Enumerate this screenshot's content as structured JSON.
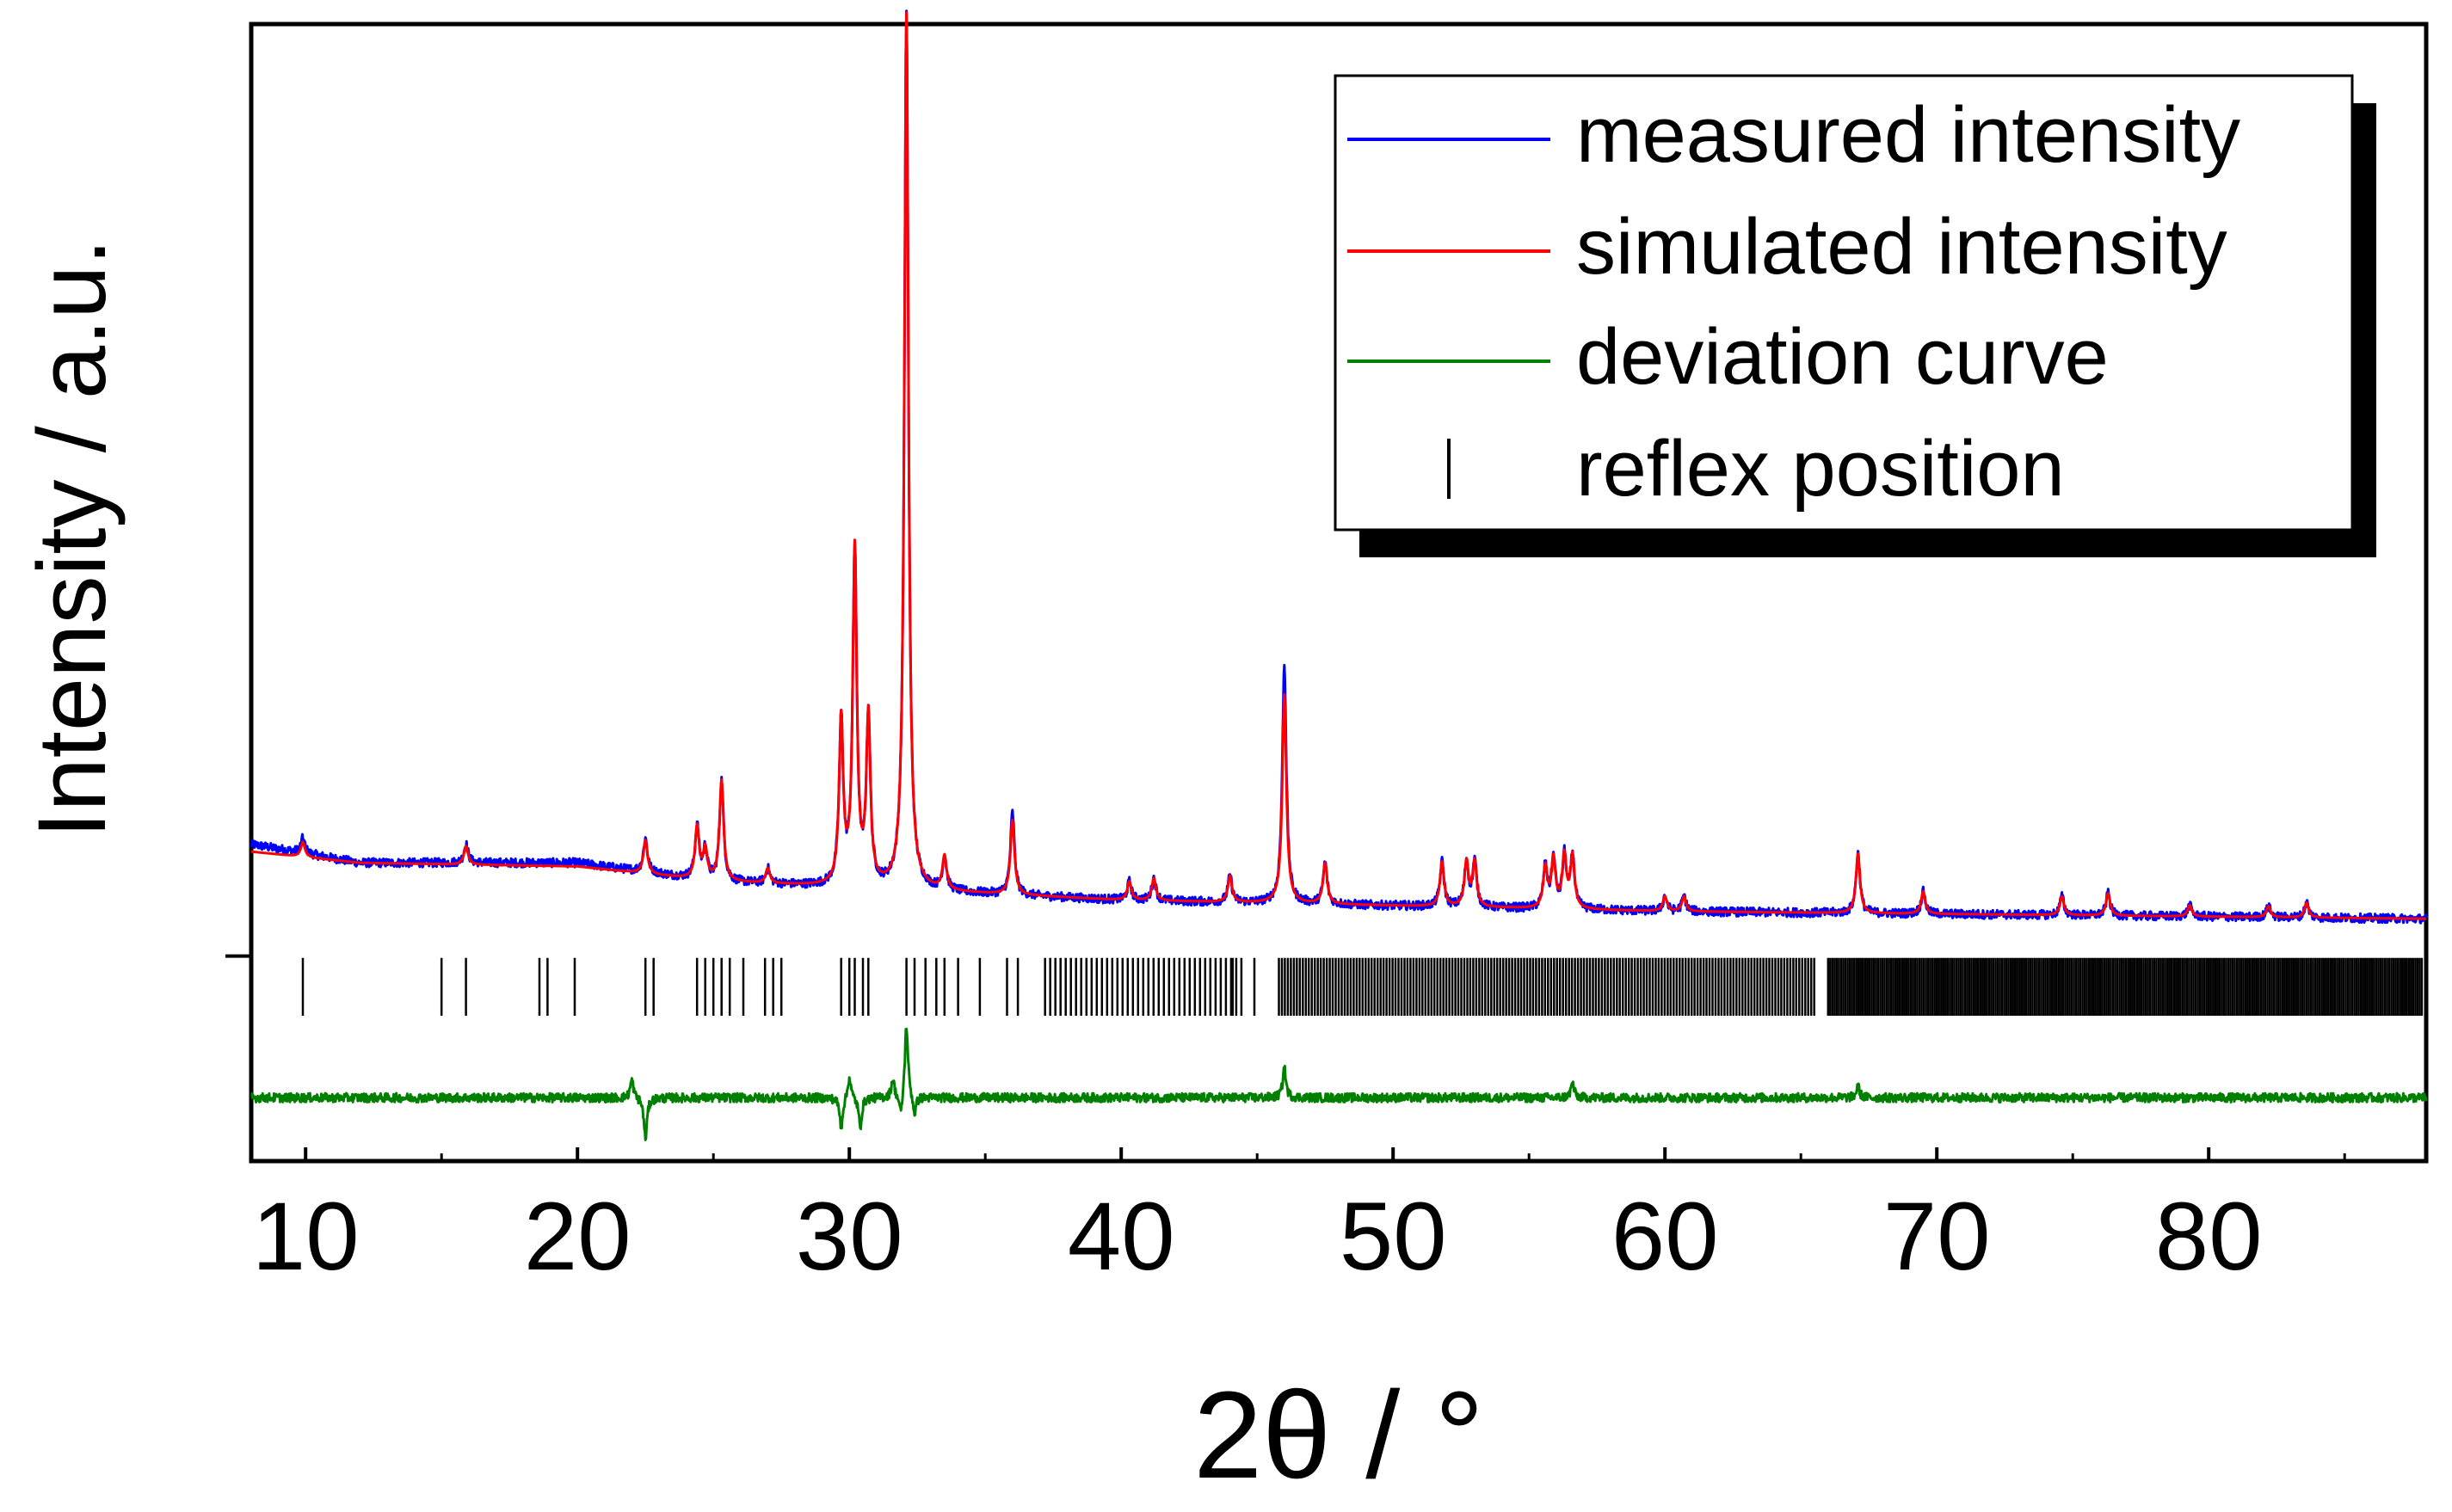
{
  "chart_data": {
    "type": "line",
    "title": "",
    "xlabel": "2θ / °",
    "ylabel": "Intensity / a.u.",
    "xlim": [
      8,
      88
    ],
    "ylim": [
      -0.55,
      2.5
    ],
    "x_ticks": [
      10,
      20,
      30,
      40,
      50,
      60,
      70,
      80
    ],
    "x_tick_labels": [
      "10",
      "20",
      "30",
      "40",
      "50",
      "60",
      "70",
      "80"
    ],
    "y_tick_value": 0,
    "grid": false,
    "legend_position": "top-right",
    "legend": [
      {
        "label": "measured intensity",
        "color": "#0000ff",
        "marker": "line"
      },
      {
        "label": "simulated intensity",
        "color": "#ff0000",
        "marker": "line"
      },
      {
        "label": "deviation curve",
        "color": "#008000",
        "marker": "line"
      },
      {
        "label": "reflex position",
        "color": "#000000",
        "marker": "tick"
      }
    ],
    "series": [
      {
        "name": "measured intensity",
        "color": "#0000ff",
        "background": [
          [
            8,
            0.3
          ],
          [
            12,
            0.25
          ],
          [
            20,
            0.25
          ],
          [
            25,
            0.2
          ],
          [
            40,
            0.15
          ],
          [
            60,
            0.12
          ],
          [
            88,
            0.1
          ]
        ],
        "noise": 0.012,
        "peaks": [
          {
            "x": 9.9,
            "h": 0.04
          },
          {
            "x": 15.9,
            "h": 0.05
          },
          {
            "x": 22.5,
            "h": 0.09
          },
          {
            "x": 24.4,
            "h": 0.14
          },
          {
            "x": 24.7,
            "h": 0.08
          },
          {
            "x": 25.3,
            "h": 0.27
          },
          {
            "x": 27.0,
            "h": 0.04
          },
          {
            "x": 29.7,
            "h": 0.44
          },
          {
            "x": 30.2,
            "h": 0.9
          },
          {
            "x": 30.7,
            "h": 0.45
          },
          {
            "x": 32.1,
            "h": 2.35
          },
          {
            "x": 33.5,
            "h": 0.09
          },
          {
            "x": 36.0,
            "h": 0.22
          },
          {
            "x": 40.3,
            "h": 0.05
          },
          {
            "x": 41.2,
            "h": 0.06
          },
          {
            "x": 44.0,
            "h": 0.07
          },
          {
            "x": 46.0,
            "h": 0.64
          },
          {
            "x": 47.5,
            "h": 0.11
          },
          {
            "x": 51.8,
            "h": 0.12
          },
          {
            "x": 52.7,
            "h": 0.12
          },
          {
            "x": 53.0,
            "h": 0.12
          },
          {
            "x": 55.6,
            "h": 0.11
          },
          {
            "x": 55.9,
            "h": 0.13
          },
          {
            "x": 56.3,
            "h": 0.14
          },
          {
            "x": 56.6,
            "h": 0.14
          },
          {
            "x": 60.0,
            "h": 0.04
          },
          {
            "x": 60.7,
            "h": 0.04
          },
          {
            "x": 67.1,
            "h": 0.16
          },
          {
            "x": 69.5,
            "h": 0.06
          },
          {
            "x": 74.6,
            "h": 0.05
          },
          {
            "x": 76.3,
            "h": 0.06
          },
          {
            "x": 79.3,
            "h": 0.03
          },
          {
            "x": 82.2,
            "h": 0.03
          },
          {
            "x": 83.6,
            "h": 0.04
          }
        ]
      },
      {
        "name": "simulated intensity",
        "color": "#ff0000",
        "background": [
          [
            8,
            0.28
          ],
          [
            12,
            0.25
          ],
          [
            20,
            0.24
          ],
          [
            25,
            0.2
          ],
          [
            40,
            0.15
          ],
          [
            60,
            0.12
          ],
          [
            88,
            0.1
          ]
        ],
        "noise": 0.0,
        "peaks": [
          {
            "x": 9.9,
            "h": 0.04
          },
          {
            "x": 15.9,
            "h": 0.05
          },
          {
            "x": 22.5,
            "h": 0.09
          },
          {
            "x": 24.4,
            "h": 0.14
          },
          {
            "x": 24.7,
            "h": 0.08
          },
          {
            "x": 25.3,
            "h": 0.27
          },
          {
            "x": 27.0,
            "h": 0.04
          },
          {
            "x": 29.7,
            "h": 0.44
          },
          {
            "x": 30.2,
            "h": 0.9
          },
          {
            "x": 30.7,
            "h": 0.45
          },
          {
            "x": 32.1,
            "h": 2.35
          },
          {
            "x": 33.5,
            "h": 0.09
          },
          {
            "x": 36.0,
            "h": 0.2
          },
          {
            "x": 40.3,
            "h": 0.05
          },
          {
            "x": 41.2,
            "h": 0.06
          },
          {
            "x": 44.0,
            "h": 0.07
          },
          {
            "x": 46.0,
            "h": 0.56
          },
          {
            "x": 47.5,
            "h": 0.11
          },
          {
            "x": 51.8,
            "h": 0.12
          },
          {
            "x": 52.7,
            "h": 0.12
          },
          {
            "x": 53.0,
            "h": 0.12
          },
          {
            "x": 55.6,
            "h": 0.11
          },
          {
            "x": 55.9,
            "h": 0.13
          },
          {
            "x": 56.3,
            "h": 0.14
          },
          {
            "x": 56.6,
            "h": 0.14
          },
          {
            "x": 60.0,
            "h": 0.04
          },
          {
            "x": 60.7,
            "h": 0.04
          },
          {
            "x": 67.1,
            "h": 0.16
          },
          {
            "x": 69.5,
            "h": 0.06
          },
          {
            "x": 74.6,
            "h": 0.05
          },
          {
            "x": 76.3,
            "h": 0.06
          },
          {
            "x": 79.3,
            "h": 0.03
          },
          {
            "x": 82.2,
            "h": 0.03
          },
          {
            "x": 83.6,
            "h": 0.04
          }
        ]
      },
      {
        "name": "deviation curve",
        "color": "#008000",
        "baseline": -0.38,
        "noise": 0.012,
        "features": [
          {
            "x": 22.0,
            "h": 0.05
          },
          {
            "x": 22.5,
            "h": -0.11
          },
          {
            "x": 29.7,
            "h": -0.08
          },
          {
            "x": 30.0,
            "h": 0.06
          },
          {
            "x": 30.4,
            "h": -0.08
          },
          {
            "x": 31.6,
            "h": 0.05
          },
          {
            "x": 31.9,
            "h": -0.06
          },
          {
            "x": 32.1,
            "h": 0.2
          },
          {
            "x": 32.4,
            "h": -0.05
          },
          {
            "x": 46.0,
            "h": 0.08
          },
          {
            "x": 56.6,
            "h": 0.04
          },
          {
            "x": 67.1,
            "h": 0.03
          }
        ]
      }
    ],
    "reflex_positions": {
      "y_range": [
        -0.16,
        -0.005
      ],
      "individual": [
        9.9,
        15.0,
        15.9,
        18.6,
        18.9,
        19.9,
        22.5,
        22.8,
        24.4,
        24.7,
        25.0,
        25.3,
        25.6,
        26.1,
        26.9,
        27.2,
        27.5,
        29.7,
        30.0,
        30.2,
        30.5,
        30.7,
        32.1,
        32.4,
        32.8,
        33.2,
        33.5,
        34.0,
        34.8,
        35.8,
        36.2,
        44.1,
        44.9
      ],
      "dense_ranges": [
        {
          "from": 37.2,
          "to": 44.5,
          "step": 0.19
        },
        {
          "from": 45.8,
          "to": 65.5,
          "step": 0.11
        },
        {
          "from": 66.0,
          "to": 87.9,
          "step": 0.08
        }
      ]
    }
  }
}
